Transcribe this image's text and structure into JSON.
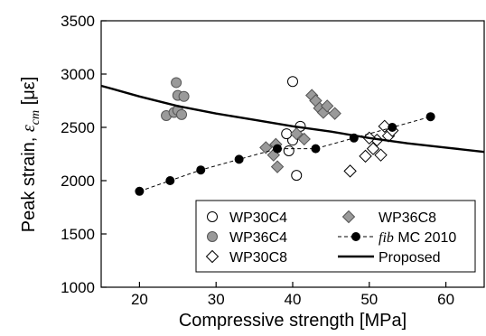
{
  "chart_data": {
    "type": "scatter",
    "xlabel": "Compressive strength [MPa]",
    "ylabel_prefix": "Peak strain, ",
    "ylabel_symbol": "ε",
    "ylabel_subscript": "cm",
    "ylabel_unit": " [με]",
    "xlim": [
      15,
      65
    ],
    "ylim": [
      1000,
      3500
    ],
    "x_ticks": [
      "20",
      "30",
      "40",
      "50",
      "60"
    ],
    "y_ticks": [
      "1000",
      "1500",
      "2000",
      "2500",
      "3000",
      "3500"
    ],
    "legend_position": "bottom-right",
    "series": [
      {
        "name": "WP30C4",
        "marker": "circle-open",
        "color": "#000000",
        "points": [
          [
            39.5,
            2280
          ],
          [
            40.0,
            2930
          ],
          [
            40.5,
            2050
          ],
          [
            41.0,
            2510
          ],
          [
            40.0,
            2380
          ],
          [
            39.2,
            2440
          ]
        ]
      },
      {
        "name": "WP36C4",
        "marker": "circle-gray",
        "color": "#999999",
        "points": [
          [
            23.5,
            2610
          ],
          [
            24.5,
            2640
          ],
          [
            25.0,
            2660
          ],
          [
            25.5,
            2620
          ],
          [
            24.8,
            2920
          ],
          [
            25.0,
            2800
          ],
          [
            25.8,
            2790
          ]
        ]
      },
      {
        "name": "WP30C8",
        "marker": "diamond-open",
        "color": "#000000",
        "points": [
          [
            47.5,
            2090
          ],
          [
            49.5,
            2230
          ],
          [
            50.5,
            2300
          ],
          [
            51.0,
            2380
          ],
          [
            50.0,
            2400
          ],
          [
            51.5,
            2240
          ],
          [
            52.0,
            2510
          ],
          [
            52.5,
            2420
          ],
          [
            53.0,
            2470
          ]
        ]
      },
      {
        "name": "WP36C8",
        "marker": "diamond-gray",
        "color": "#999999",
        "points": [
          [
            36.5,
            2310
          ],
          [
            37.5,
            2240
          ],
          [
            38.0,
            2130
          ],
          [
            37.8,
            2340
          ],
          [
            40.5,
            2440
          ],
          [
            41.5,
            2390
          ],
          [
            42.5,
            2800
          ],
          [
            43.0,
            2750
          ],
          [
            43.5,
            2680
          ],
          [
            44.0,
            2640
          ],
          [
            44.5,
            2700
          ],
          [
            45.5,
            2630
          ]
        ]
      },
      {
        "name": "MC 2010",
        "name_prefix": "fib",
        "marker": "circle-black-dashed",
        "color": "#000000",
        "points": [
          [
            20,
            1900
          ],
          [
            24,
            2000
          ],
          [
            28,
            2100
          ],
          [
            33,
            2200
          ],
          [
            38,
            2300
          ],
          [
            43,
            2300
          ],
          [
            48,
            2400
          ],
          [
            53,
            2500
          ],
          [
            58,
            2600
          ]
        ]
      },
      {
        "name": "Proposed",
        "marker": "line",
        "color": "#000000",
        "points": [
          [
            15,
            2890
          ],
          [
            20,
            2790
          ],
          [
            25,
            2700
          ],
          [
            30,
            2630
          ],
          [
            35,
            2570
          ],
          [
            40,
            2510
          ],
          [
            45,
            2460
          ],
          [
            50,
            2400
          ],
          [
            55,
            2350
          ],
          [
            60,
            2310
          ],
          [
            65,
            2270
          ]
        ]
      }
    ]
  }
}
